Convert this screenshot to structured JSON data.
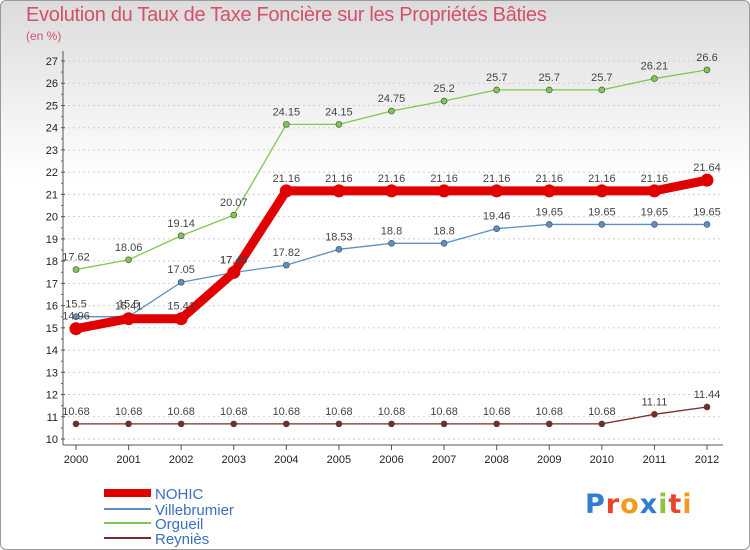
{
  "chart_data": {
    "type": "line",
    "title": "Evolution du Taux de Taxe Foncière sur les Propriétés Bâties",
    "subtitle": "(en %)",
    "x": [
      "2000",
      "2001",
      "2002",
      "2003",
      "2004",
      "2005",
      "2006",
      "2007",
      "2008",
      "2009",
      "2010",
      "2011",
      "2012"
    ],
    "ylim": [
      10,
      27
    ],
    "yticks": [
      10,
      11,
      12,
      13,
      14,
      15,
      16,
      17,
      18,
      19,
      20,
      21,
      22,
      23,
      24,
      25,
      26,
      27
    ],
    "series": [
      {
        "name": "NOHIC",
        "color": "#e00000",
        "values": [
          14.96,
          15.41,
          15.41,
          17.49,
          21.16,
          21.16,
          21.16,
          21.16,
          21.16,
          21.16,
          21.16,
          21.16,
          21.64
        ],
        "labels": [
          "14.96",
          "15.41",
          "15.41",
          "17.49",
          "21.16",
          "21.16",
          "21.16",
          "21.16",
          "21.16",
          "21.16",
          "21.16",
          "21.16",
          "21.64"
        ]
      },
      {
        "name": "Villebrumier",
        "color": "#5b8fc7",
        "values": [
          15.5,
          15.5,
          17.05,
          17.49,
          17.82,
          18.53,
          18.8,
          18.8,
          19.46,
          19.65,
          19.65,
          19.65,
          19.65
        ],
        "labels": [
          "15.5",
          "15.5",
          "17.05",
          "17.49",
          "17.82",
          "18.53",
          "18.8",
          "18.8",
          "19.46",
          "19.65",
          "19.65",
          "19.65",
          "19.65"
        ]
      },
      {
        "name": "Orgueil",
        "color": "#7ec850",
        "values": [
          17.62,
          18.06,
          19.14,
          20.07,
          24.15,
          24.15,
          24.75,
          25.2,
          25.7,
          25.7,
          25.7,
          26.21,
          26.6
        ],
        "labels": [
          "17.62",
          "18.06",
          "19.14",
          "20.07",
          "24.15",
          "24.15",
          "24.75",
          "25.2",
          "25.7",
          "25.7",
          "25.7",
          "26.21",
          "26.6"
        ]
      },
      {
        "name": "Reyniès",
        "color": "#7a2a2a",
        "values": [
          10.68,
          10.68,
          10.68,
          10.68,
          10.68,
          10.68,
          10.68,
          10.68,
          10.68,
          10.68,
          10.68,
          11.11,
          11.44
        ],
        "labels": [
          "10.68",
          "10.68",
          "10.68",
          "10.68",
          "10.68",
          "10.68",
          "10.68",
          "10.68",
          "10.68",
          "10.68",
          "10.68",
          "11.11",
          "11.44"
        ]
      }
    ],
    "legend": [
      "NOHIC",
      "Villebrumier",
      "Orgueil",
      "Reyniès"
    ],
    "grid": "horizontal-dotted"
  },
  "logo": {
    "letters": [
      "P",
      "r",
      "o",
      "x",
      "i",
      "t",
      "i"
    ],
    "colors": [
      "#2f7fd1",
      "#e8452c",
      "#f29a1e",
      "#2f7fd1",
      "#8cc63f",
      "#e8452c",
      "#f29a1e"
    ]
  }
}
